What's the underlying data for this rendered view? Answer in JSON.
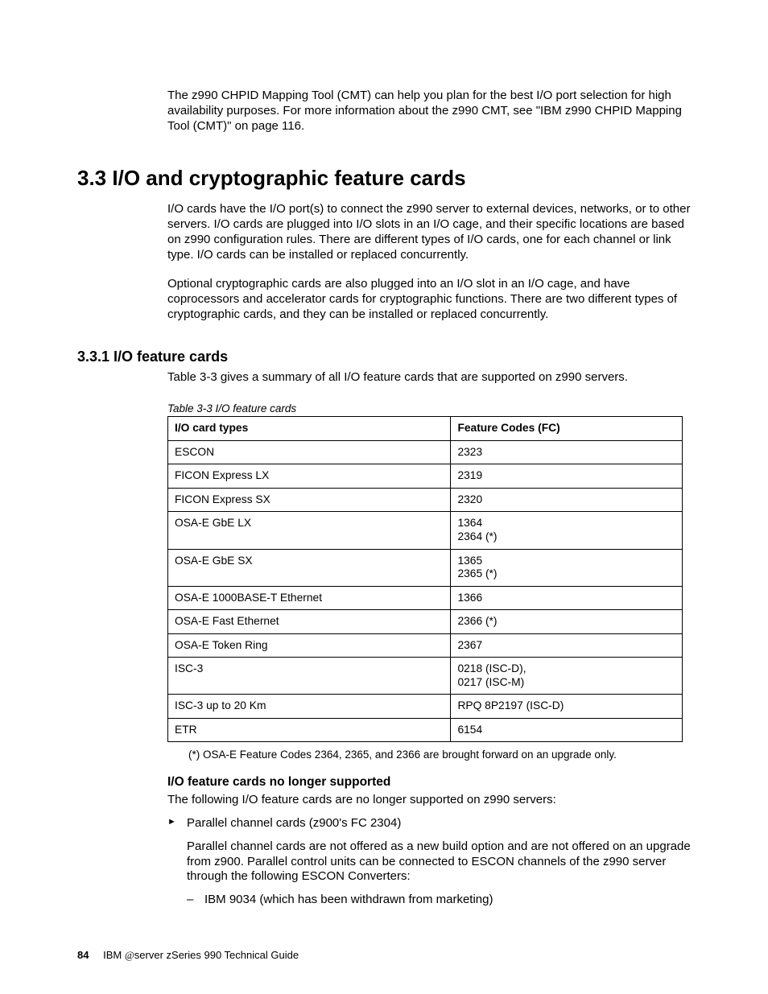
{
  "intro_para": "The z990 CHPID Mapping Tool (CMT) can help you plan for the best I/O port selection for high availability purposes. For more information about the z990 CMT, see \"IBM z990 CHPID Mapping Tool (CMT)\" on page 116.",
  "section_heading": "3.3  I/O and cryptographic feature cards",
  "section_para1": "I/O cards have the I/O port(s) to connect the z990 server to external devices, networks, or to other servers. I/O cards are plugged into I/O slots in an I/O cage, and their specific locations are based on z990 configuration rules. There are different types of I/O cards, one for each channel or link type. I/O cards can be installed or replaced concurrently.",
  "section_para2": "Optional cryptographic cards are also plugged into an I/O slot in an I/O cage, and have coprocessors and accelerator cards for cryptographic functions. There are two different types of cryptographic cards, and they can be installed or replaced concurrently.",
  "subsection_heading": "3.3.1  I/O feature cards",
  "subsection_intro": "Table 3-3 gives a summary of all I/O feature cards that are supported on z990 servers.",
  "table": {
    "caption": "Table 3-3   I/O feature cards",
    "columns": [
      "I/O card types",
      "Feature Codes (FC)"
    ],
    "rows": [
      [
        "ESCON",
        "2323"
      ],
      [
        "FICON Express LX",
        "2319"
      ],
      [
        "FICON Express SX",
        "2320"
      ],
      [
        "OSA-E GbE LX",
        "1364\n2364 (*)"
      ],
      [
        "OSA-E GbE SX",
        "1365\n2365 (*)"
      ],
      [
        "OSA-E 1000BASE-T Ethernet",
        "1366"
      ],
      [
        "OSA-E Fast Ethernet",
        "2366 (*)"
      ],
      [
        "OSA-E Token Ring",
        "2367"
      ],
      [
        "ISC-3",
        "0218 (ISC-D),\n0217 (ISC-M)"
      ],
      [
        "ISC-3 up to 20 Km",
        "RPQ 8P2197 (ISC-D)"
      ],
      [
        "ETR",
        "6154"
      ]
    ],
    "footnote": "(*) OSA-E Feature Codes 2364, 2365, and 2366 are brought forward on an upgrade only."
  },
  "nolonger_heading": "I/O feature cards no longer supported",
  "nolonger_intro": "The following I/O feature cards are no longer supported on z990 servers:",
  "bullet1_line1": "Parallel channel cards (z900's FC 2304)",
  "bullet1_para": "Parallel channel cards are not offered as a new build option and are not offered on an upgrade from z900. Parallel control units can be connected to ESCON channels of the z990 server through the following ESCON Converters:",
  "dash1": "IBM 9034 (which has been withdrawn from marketing)",
  "footer": {
    "page_number": "84",
    "book_prefix": "IBM ",
    "book_at": "@",
    "book_server": "server",
    "book_rest": " zSeries 990 Technical Guide"
  }
}
